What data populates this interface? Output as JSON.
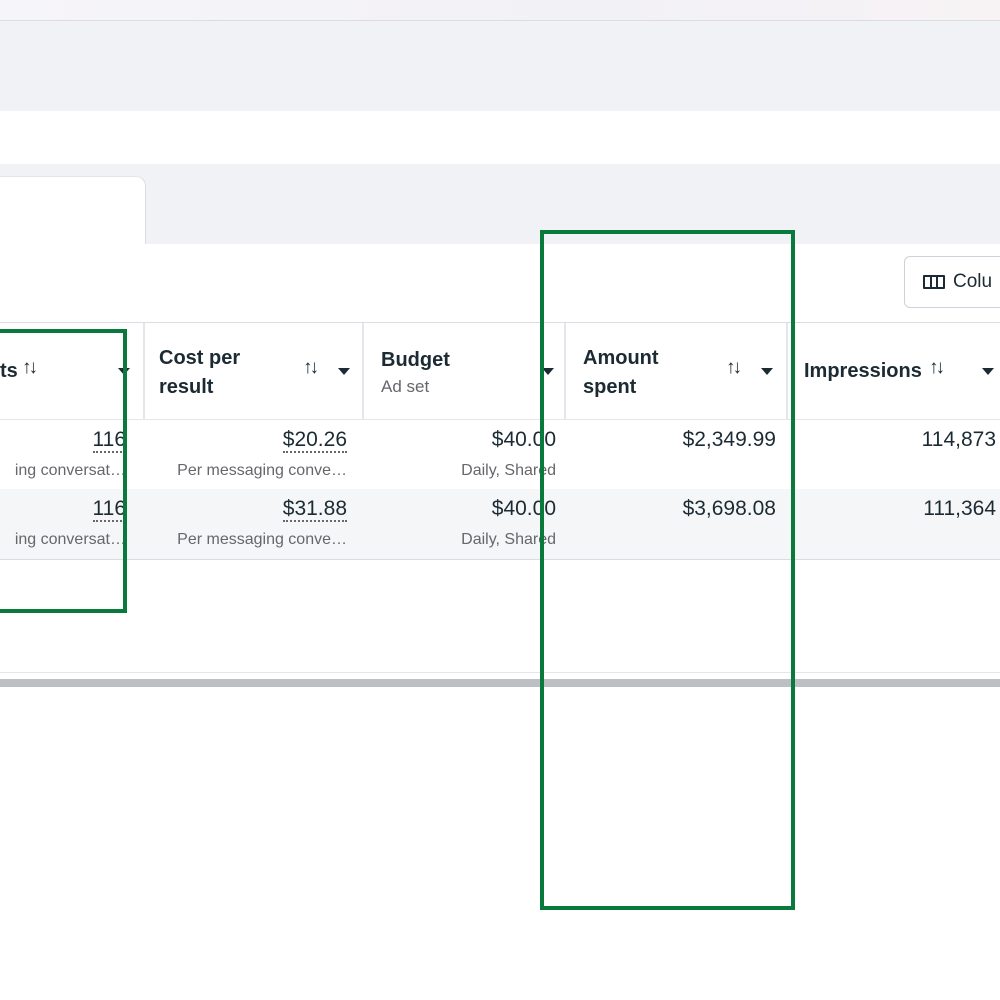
{
  "toolbar": {
    "columns_label": "Colu"
  },
  "table": {
    "headers": {
      "results": {
        "title": "ts"
      },
      "cost_per_result": {
        "title_line1": "Cost per",
        "title_line2": "result"
      },
      "budget": {
        "title": "Budget",
        "subtitle": "Ad set"
      },
      "amount_spent": {
        "title_line1": "Amount",
        "title_line2": "spent"
      },
      "impressions": {
        "title": "Impressions"
      }
    },
    "rows": [
      {
        "results": "116",
        "results_sub": "ing conversat…",
        "cost_per_result": "$20.26",
        "cost_per_result_sub": "Per messaging conve…",
        "budget": "$40.00",
        "budget_sub": "Daily, Shared",
        "amount_spent": "$2,349.99",
        "impressions": "114,873"
      },
      {
        "results": "116",
        "results_sub": "ing conversat…",
        "cost_per_result": "$31.88",
        "cost_per_result_sub": "Per messaging conve…",
        "budget": "$40.00",
        "budget_sub": "Daily, Shared",
        "amount_spent": "$3,698.08",
        "impressions": "111,364"
      }
    ]
  },
  "icons": {
    "sort": "sort-arrows-icon",
    "dropdown": "caret-down-icon",
    "columns": "columns-icon"
  },
  "colors": {
    "highlight": "#0a7a3c",
    "text": "#1c2b33",
    "secondary_text": "#65676b",
    "band_background": "#f0f2f5"
  }
}
